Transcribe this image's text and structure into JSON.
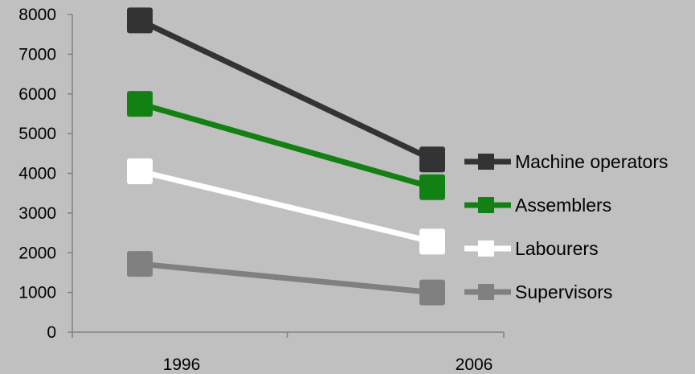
{
  "chart_data": {
    "type": "line",
    "title": "",
    "xlabel": "",
    "ylabel": "",
    "categories": [
      "1996",
      "2006"
    ],
    "ylim": [
      0,
      8000
    ],
    "yticks": [
      "0",
      "1000",
      "2000",
      "3000",
      "4000",
      "5000",
      "6000",
      "7000",
      "8000"
    ],
    "grid": false,
    "legend_position": "right",
    "series": [
      {
        "name": "Machine operators",
        "values": [
          7850,
          4350
        ],
        "color": "#333333"
      },
      {
        "name": "Assemblers",
        "values": [
          5750,
          3650
        ],
        "color": "#138013"
      },
      {
        "name": "Labourers",
        "values": [
          4050,
          2280
        ],
        "color": "#ffffff"
      },
      {
        "name": "Supervisors",
        "values": [
          1720,
          1000
        ],
        "color": "#808080"
      }
    ]
  }
}
